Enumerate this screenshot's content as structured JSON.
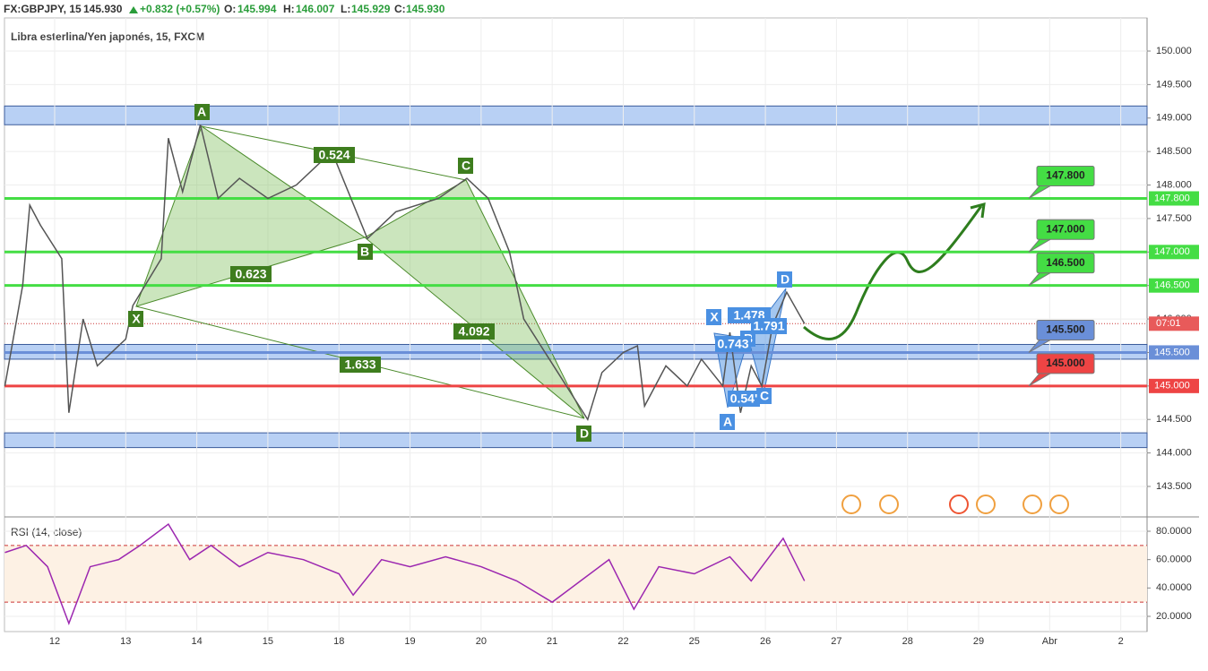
{
  "header": {
    "symbol": "FX:GBPJPY, 15",
    "price": "145.930",
    "change": "+0.832 (+0.57%)",
    "o_label": "O:",
    "o": "145.994",
    "h_label": "H:",
    "h": "146.007",
    "l_label": "L:",
    "l": "145.929",
    "c_label": "C:",
    "c": "145.930"
  },
  "chart_data": [
    {
      "type": "line",
      "title": "Libra esterlina/Yen japonés, 15, FXCM",
      "x": [
        -0.7,
        -0.45,
        -0.35,
        -0.2,
        0.1,
        0.2,
        0.4,
        0.6,
        0.9,
        1.0,
        1.1,
        1.5,
        1.6,
        1.8,
        2.05,
        2.3,
        2.6,
        3.0,
        3.4,
        3.9,
        4.4,
        4.8,
        5.4,
        5.8,
        6.1,
        6.4,
        6.6,
        6.9,
        7.2,
        7.5,
        7.7,
        8.0,
        8.2,
        8.3,
        8.6,
        8.9,
        9.1,
        9.4,
        9.5,
        9.65,
        9.8,
        9.95,
        10.1,
        10.3,
        10.55
      ],
      "series": [
        {
          "color": "#555555",
          "values": [
            145.0,
            146.5,
            147.7,
            147.4,
            146.9,
            144.6,
            146.0,
            145.3,
            145.6,
            145.7,
            146.2,
            146.9,
            148.7,
            147.9,
            148.9,
            147.8,
            148.1,
            147.8,
            148.0,
            148.5,
            147.2,
            147.6,
            147.8,
            148.1,
            147.8,
            147.0,
            146.0,
            145.5,
            145.0,
            144.5,
            145.2,
            145.5,
            145.6,
            144.7,
            145.3,
            145.0,
            145.4,
            145.0,
            145.8,
            144.6,
            145.3,
            145.0,
            145.9,
            146.4,
            145.93
          ]
        }
      ],
      "xlim": [
        -0.706,
        15.37
      ],
      "xticks": [
        {
          "value": 0,
          "label": "12"
        },
        {
          "value": 1,
          "label": "13"
        },
        {
          "value": 2,
          "label": "14"
        },
        {
          "value": 3,
          "label": "15"
        },
        {
          "value": 4,
          "label": "18"
        },
        {
          "value": 5,
          "label": "19"
        },
        {
          "value": 6,
          "label": "20"
        },
        {
          "value": 7,
          "label": "21"
        },
        {
          "value": 8,
          "label": "22"
        },
        {
          "value": 9,
          "label": "25"
        },
        {
          "value": 10,
          "label": "26"
        },
        {
          "value": 11,
          "label": "27"
        },
        {
          "value": 12,
          "label": "28"
        },
        {
          "value": 13,
          "label": "29"
        },
        {
          "value": 14,
          "label": "Abr"
        },
        {
          "value": 15,
          "label": "2"
        }
      ],
      "ylim": [
        143.045,
        150.495
      ],
      "yticks": [
        {
          "value": 150,
          "label": "150.000"
        },
        {
          "value": 149.5,
          "label": "149.500"
        },
        {
          "value": 149,
          "label": "149.000"
        },
        {
          "value": 148.5,
          "label": "148.500"
        },
        {
          "value": 148,
          "label": "148.000"
        },
        {
          "value": 147.5,
          "label": "147.500"
        },
        {
          "value": 147,
          "label": "147.000"
        },
        {
          "value": 146.5,
          "label": "146.500"
        },
        {
          "value": 146,
          "label": "146.000"
        },
        {
          "value": 145.5,
          "label": "145.500"
        },
        {
          "value": 145,
          "label": "145.000"
        },
        {
          "value": 144.5,
          "label": "144.500"
        },
        {
          "value": 144,
          "label": "144.000"
        },
        {
          "value": 143.5,
          "label": "143.500"
        }
      ],
      "levels": [
        {
          "value": 147.8,
          "label": "147.800",
          "color": "#44dd44"
        },
        {
          "value": 147.0,
          "label": "147.000",
          "color": "#44dd44"
        },
        {
          "value": 146.5,
          "label": "146.500",
          "color": "#44dd44"
        },
        {
          "value": 145.5,
          "label": "145.500",
          "color": "#6a8fd8"
        },
        {
          "value": 145.0,
          "label": "145.000",
          "color": "#ee4444"
        }
      ],
      "zones": [
        [
          148.9,
          149.18
        ],
        [
          145.4,
          145.62
        ],
        [
          144.08,
          144.3
        ]
      ],
      "current": {
        "value": 145.93,
        "label": "07:01"
      },
      "annotations": [
        "A",
        "B",
        "C",
        "D",
        "X",
        "0.524",
        "0.623",
        "4.092",
        "1.633",
        "X",
        "A",
        "B",
        "C",
        "D",
        "1.478",
        "0.743",
        "0.54'",
        "1.791"
      ]
    },
    {
      "type": "line",
      "title": "RSI (14, close)",
      "x": [
        -0.7,
        -0.4,
        -0.1,
        0.2,
        0.5,
        0.9,
        1.2,
        1.6,
        1.9,
        2.2,
        2.6,
        3.0,
        3.5,
        4.0,
        4.2,
        4.6,
        5.0,
        5.5,
        6.0,
        6.5,
        7.0,
        7.4,
        7.8,
        8.15,
        8.5,
        9.0,
        9.5,
        9.8,
        10.25,
        10.55
      ],
      "series": [
        {
          "color": "#9c27b0",
          "values": [
            65,
            70,
            55,
            15,
            55,
            60,
            70,
            85,
            60,
            70,
            55,
            65,
            60,
            50,
            35,
            60,
            55,
            62,
            55,
            45,
            30,
            45,
            60,
            25,
            55,
            50,
            62,
            45,
            75,
            45
          ]
        }
      ],
      "ylim": [
        9.26,
        90.1
      ],
      "yticks": [
        {
          "value": 80,
          "label": "80.0000"
        },
        {
          "value": 60,
          "label": "60.0000"
        },
        {
          "value": 40,
          "label": "40.0000"
        },
        {
          "value": 20,
          "label": "20.0000"
        }
      ],
      "bands": [
        70,
        30
      ]
    }
  ]
}
